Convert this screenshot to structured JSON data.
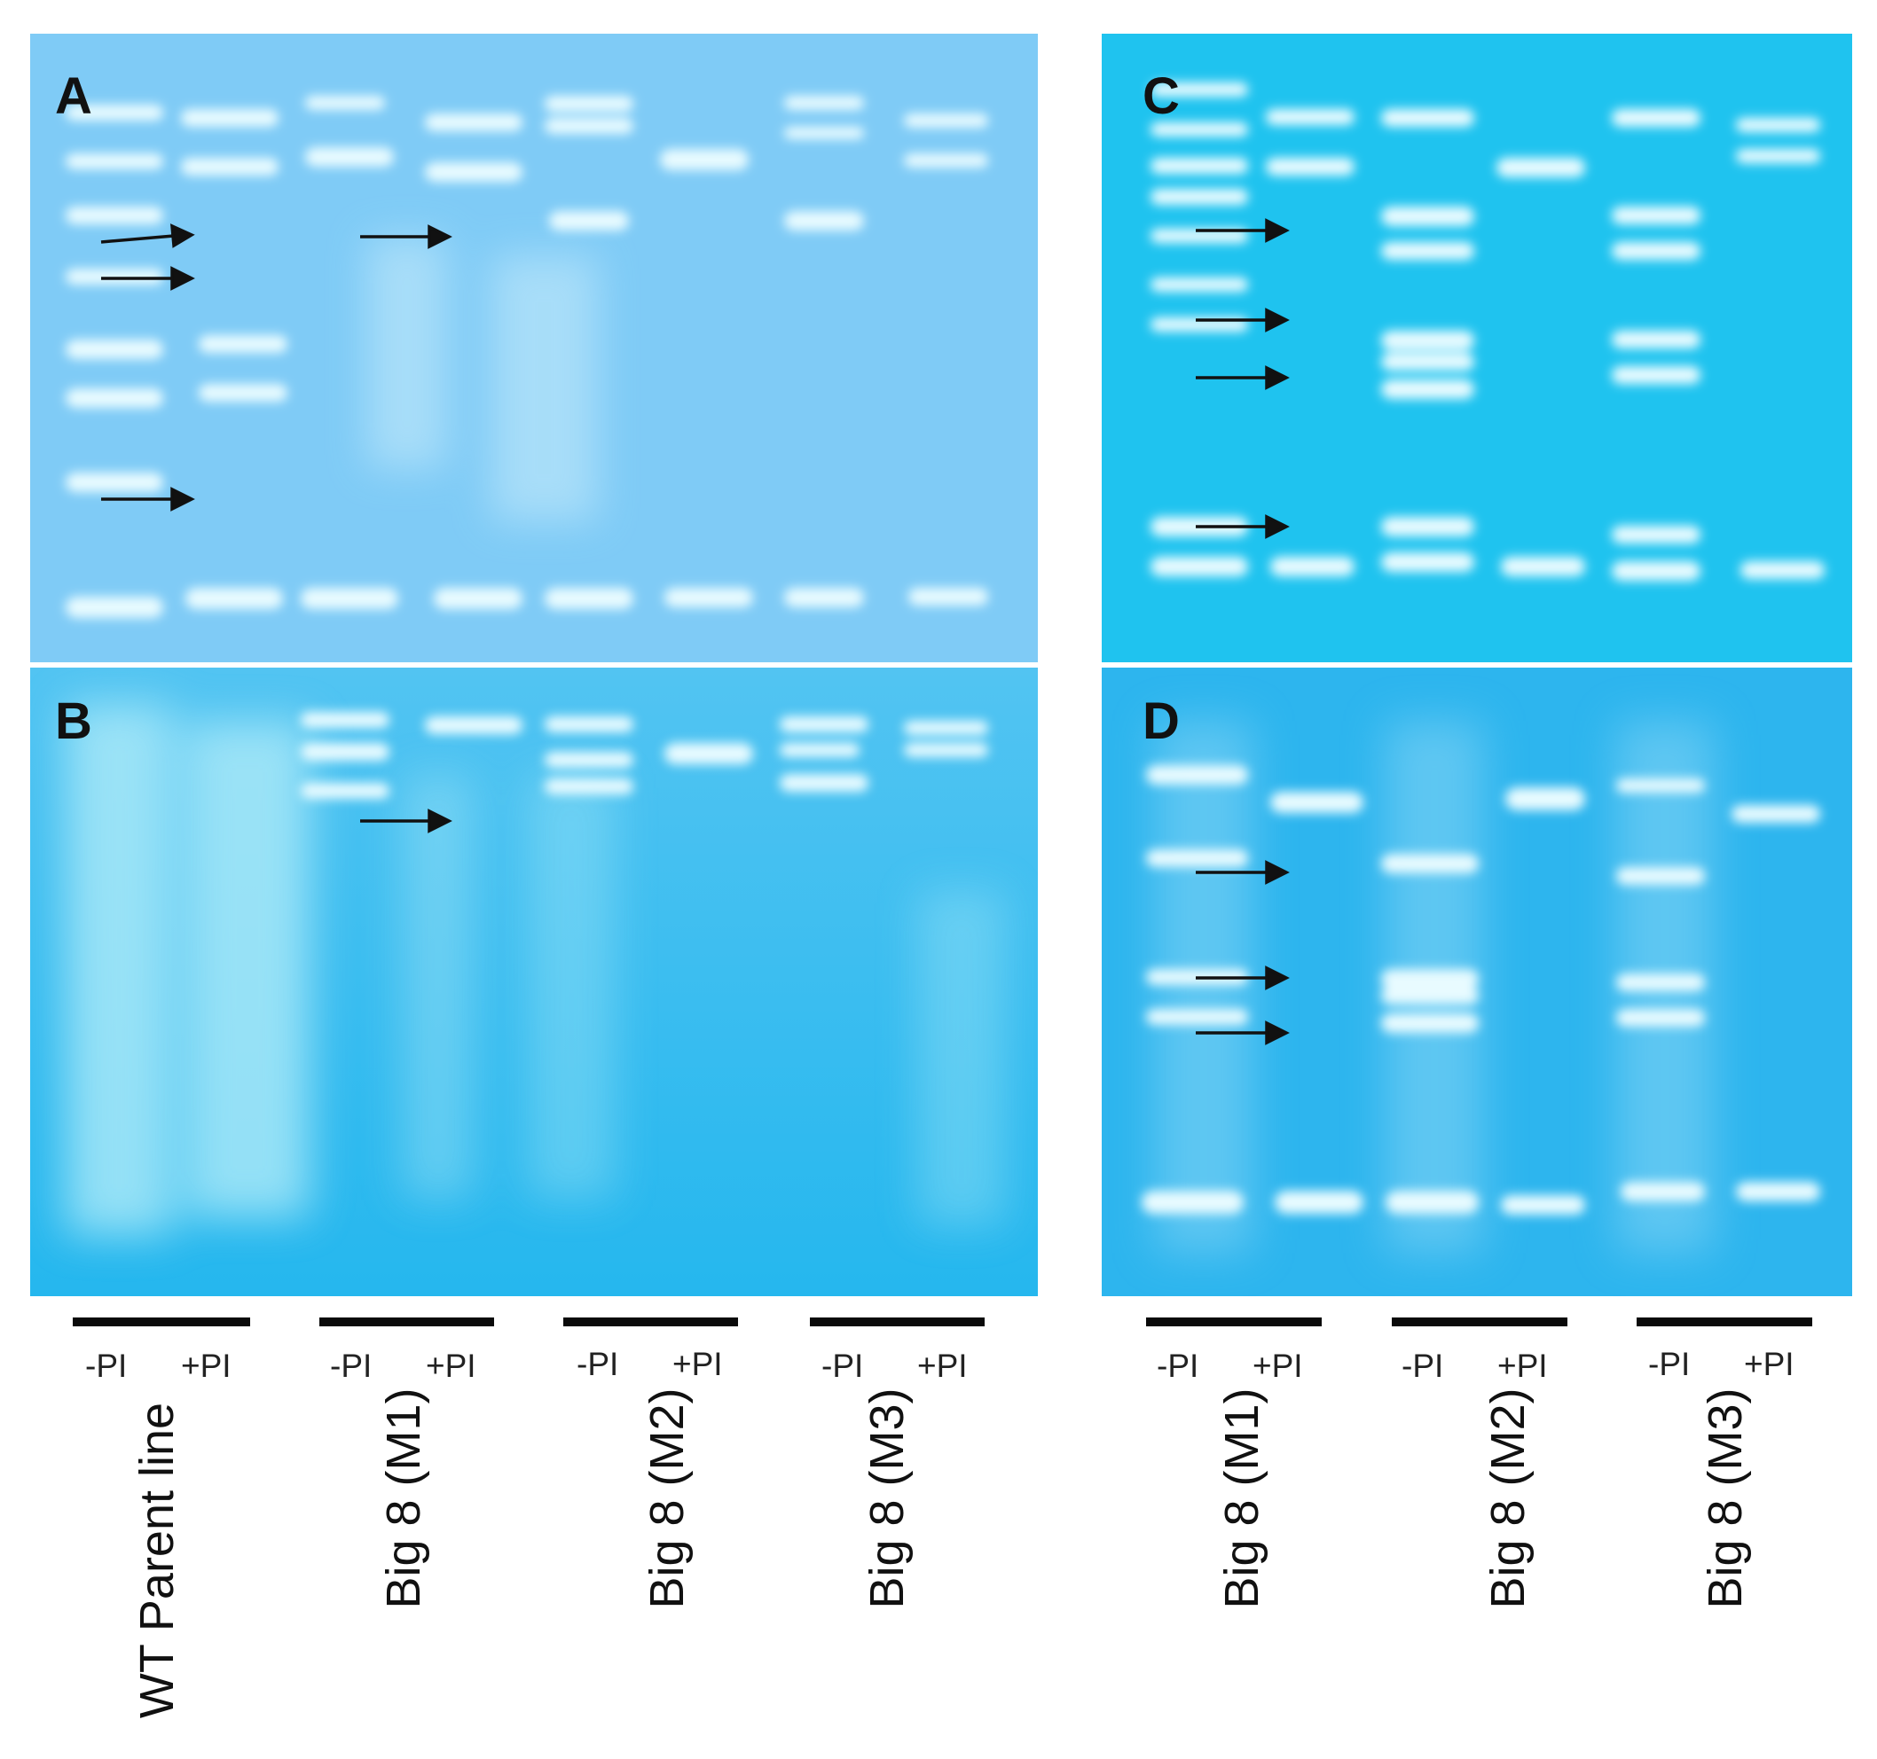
{
  "panels": {
    "A": {
      "letter": "A",
      "gel_color": "#7fcbf6",
      "arrows": 4
    },
    "B": {
      "letter": "B",
      "gel_color": "#3cc3f0",
      "arrows": 1
    },
    "C": {
      "letter": "C",
      "gel_color": "#1fc3ef",
      "arrows": 4
    },
    "D": {
      "letter": "D",
      "gel_color": "#2db5ee",
      "arrows": 3
    }
  },
  "lane_labels": {
    "minus": "-PI",
    "plus": "+PI"
  },
  "samples_left": [
    "WT  Parent line",
    "Big 8 (M1)",
    "Big 8 (M2)",
    "Big 8 (M3)"
  ],
  "samples_right": [
    "Big 8 (M1)",
    "Big 8 (M2)",
    "Big 8 (M3)"
  ],
  "colors": {
    "band": "#e8fbff",
    "arrow": "#111111",
    "bar": "#0a0a0a"
  }
}
